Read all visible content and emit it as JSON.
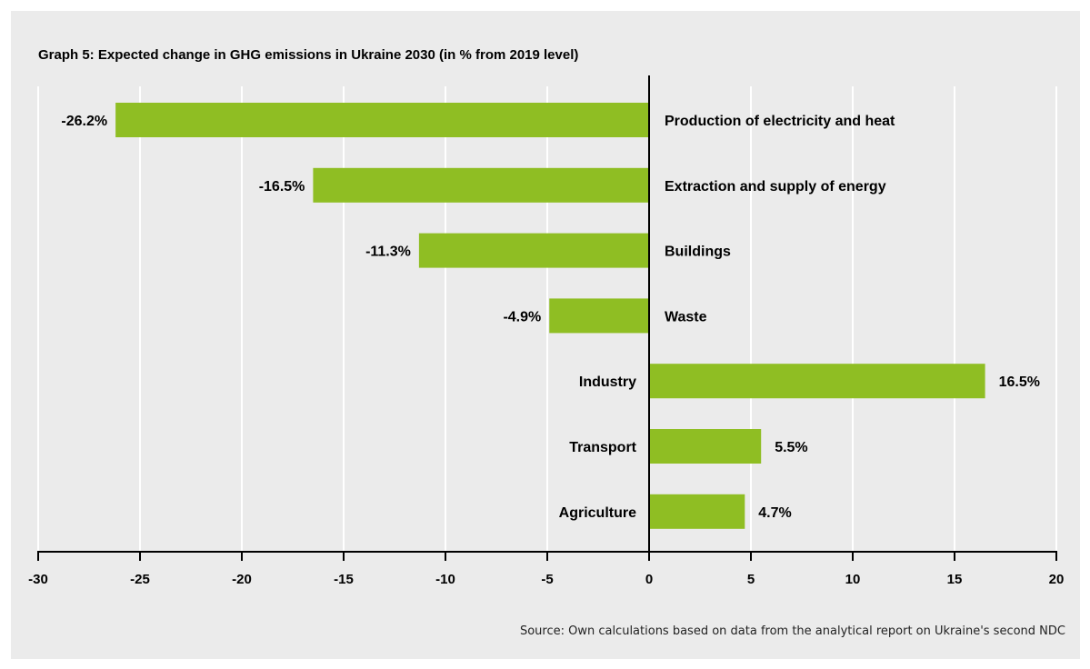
{
  "chart_data": {
    "type": "bar",
    "orientation": "horizontal",
    "title": "Graph 5: Expected change in GHG emissions in Ukraine 2030 (in % from 2019 level)",
    "categories": [
      "Production of electricity and heat",
      "Extraction and supply of energy",
      "Buildings",
      "Waste",
      "Industry",
      "Transport",
      "Agriculture"
    ],
    "values": [
      -26.2,
      -16.5,
      -11.3,
      -4.9,
      16.5,
      5.5,
      4.7
    ],
    "value_labels": [
      "-26.2%",
      "-16.5%",
      "-11.3%",
      "-4.9%",
      "16.5%",
      "5.5%",
      "4.7%"
    ],
    "xlim": [
      -30,
      20
    ],
    "xticks": [
      -30,
      -25,
      -20,
      -15,
      -10,
      -5,
      0,
      5,
      10,
      15,
      20
    ],
    "xtick_labels": [
      "-30",
      "-25",
      "-20",
      "-15",
      "-10",
      "-5",
      "0",
      "5",
      "10",
      "15",
      "20"
    ],
    "xlabel": "",
    "ylabel": "",
    "grid": "vertical",
    "legend": "none",
    "bar_color": "#8fbe23",
    "grid_color": "#ffffff",
    "background_color": "#ebebeb",
    "source": "Source: Own calculations based on data from the analytical report on Ukraine's second NDC"
  }
}
